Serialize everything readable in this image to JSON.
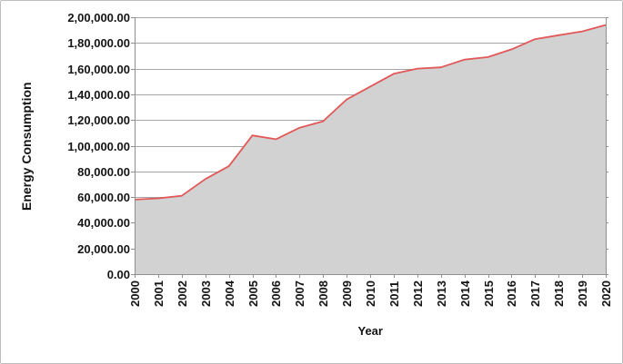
{
  "chart_data": {
    "type": "area",
    "title": "",
    "xlabel": "Year",
    "ylabel": "Energy Consumption",
    "categories": [
      "2000",
      "2001",
      "2002",
      "2003",
      "2004",
      "2005",
      "2006",
      "2007",
      "2008",
      "2009",
      "2010",
      "2011",
      "2012",
      "2013",
      "2014",
      "2015",
      "2016",
      "2017",
      "2018",
      "2019",
      "2020"
    ],
    "series": [
      {
        "name": "Energy Consumption",
        "values": [
          58000,
          59000,
          61000,
          74000,
          84000,
          108000,
          105000,
          114000,
          119000,
          136000,
          146000,
          156000,
          160000,
          161000,
          167000,
          169000,
          175000,
          183000,
          186000,
          189000,
          194000
        ]
      }
    ],
    "ylim": [
      0,
      200000
    ],
    "y_tick_interval": 20000,
    "y_tick_labels": [
      "0.00",
      "20,000.00",
      "40,000.00",
      "60,000.00",
      "80,000.00",
      "1,00,000.00",
      "1,20,000.00",
      "1,40,000.00",
      "1,60,000.00",
      "1,80,000.00",
      "2,00,000.00"
    ],
    "grid": true,
    "legend": "none",
    "colors": {
      "line": "#e25757",
      "fill": "#d2d2d2",
      "gridline": "#a6a6a6",
      "axis": "#8f8f8f",
      "text": "#141414",
      "border": "#bdbdbd",
      "background": "#ffffff"
    }
  }
}
